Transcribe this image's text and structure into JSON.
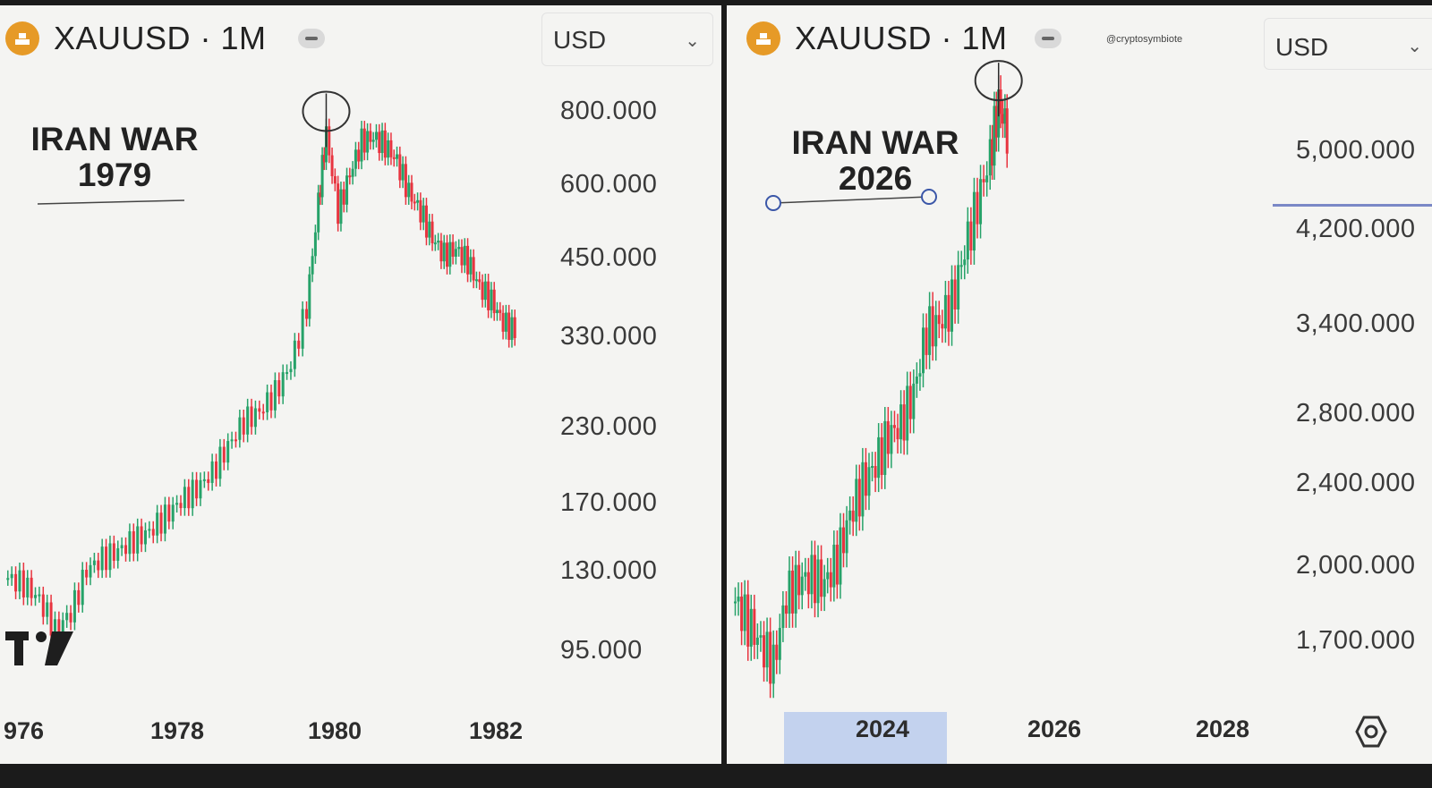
{
  "left": {
    "symbol": "XAUUSD · 1M",
    "currency": "USD",
    "annotation": {
      "line1": "IRAN WAR",
      "line2": "1979"
    },
    "price_labels": [
      "800.000",
      "600.000",
      "450.000",
      "330.000",
      "230.000",
      "170.000",
      "130.000",
      "95.000"
    ],
    "year_labels": [
      "976",
      "1978",
      "1980",
      "1982"
    ]
  },
  "right": {
    "symbol": "XAUUSD · 1M",
    "currency": "USD",
    "watermark": "@cryptosymbiote",
    "annotation": {
      "line1": "IRAN WAR",
      "line2": "2026"
    },
    "price_labels": [
      "5,000.000",
      "4,200.000",
      "3,400.000",
      "2,800.000",
      "2,400.000",
      "2,000.000",
      "1,700.000"
    ],
    "year_labels": [
      "2024",
      "2026",
      "2028"
    ]
  },
  "colors": {
    "up": "#26a269",
    "down": "#e8343f",
    "gold": "#e69a27",
    "background": "#f4f4f2"
  },
  "icons": [
    "gold-bars-icon",
    "minus-icon",
    "chevron-down-icon",
    "tradingview-logo",
    "settings-icon"
  ],
  "chart_data": [
    {
      "type": "candlestick",
      "title": "XAUUSD · 1M",
      "annotation": "IRAN WAR 1979",
      "y_scale": "log",
      "ylim": [
        85,
        900
      ],
      "xlim": [
        1975.9,
        1982.8
      ],
      "series": [
        {
          "x": [
            1976.0,
            1976.2,
            1976.4,
            1976.6,
            1976.8,
            1977.0,
            1977.2,
            1977.4,
            1977.6,
            1977.8,
            1978.0,
            1978.2,
            1978.4,
            1978.6,
            1978.8,
            1979.0,
            1979.2,
            1979.4,
            1979.6,
            1979.8,
            1979.95,
            1980.05,
            1980.2,
            1980.35,
            1980.5,
            1980.65,
            1980.8,
            1980.95,
            1981.1,
            1981.25,
            1981.4,
            1981.55,
            1981.7,
            1981.85,
            1982.0,
            1982.15,
            1982.3,
            1982.45
          ],
          "close": [
            128,
            125,
            118,
            105,
            112,
            132,
            138,
            142,
            148,
            153,
            162,
            172,
            180,
            192,
            212,
            233,
            242,
            260,
            290,
            360,
            540,
            700,
            520,
            600,
            680,
            690,
            670,
            630,
            560,
            520,
            470,
            440,
            450,
            430,
            390,
            370,
            340,
            330
          ]
        }
      ]
    },
    {
      "type": "candlestick",
      "title": "XAUUSD · 1M",
      "annotation": "IRAN WAR 2026",
      "y_scale": "log",
      "ylim": [
        1580,
        5700
      ],
      "xlim": [
        2022.9,
        2028.8
      ],
      "series": [
        {
          "x": [
            2023.0,
            2023.15,
            2023.3,
            2023.45,
            2023.6,
            2023.75,
            2023.9,
            2024.05,
            2024.2,
            2024.35,
            2024.5,
            2024.65,
            2024.8,
            2024.95,
            2025.1,
            2025.25,
            2025.4,
            2025.55,
            2025.7,
            2025.85,
            2026.0,
            2026.1,
            2026.2
          ],
          "close": [
            1880,
            1800,
            1720,
            1650,
            1900,
            1960,
            1980,
            1950,
            2050,
            2250,
            2400,
            2500,
            2650,
            2720,
            2900,
            3300,
            3350,
            3500,
            3900,
            4300,
            4750,
            5300,
            5000
          ]
        }
      ]
    }
  ]
}
